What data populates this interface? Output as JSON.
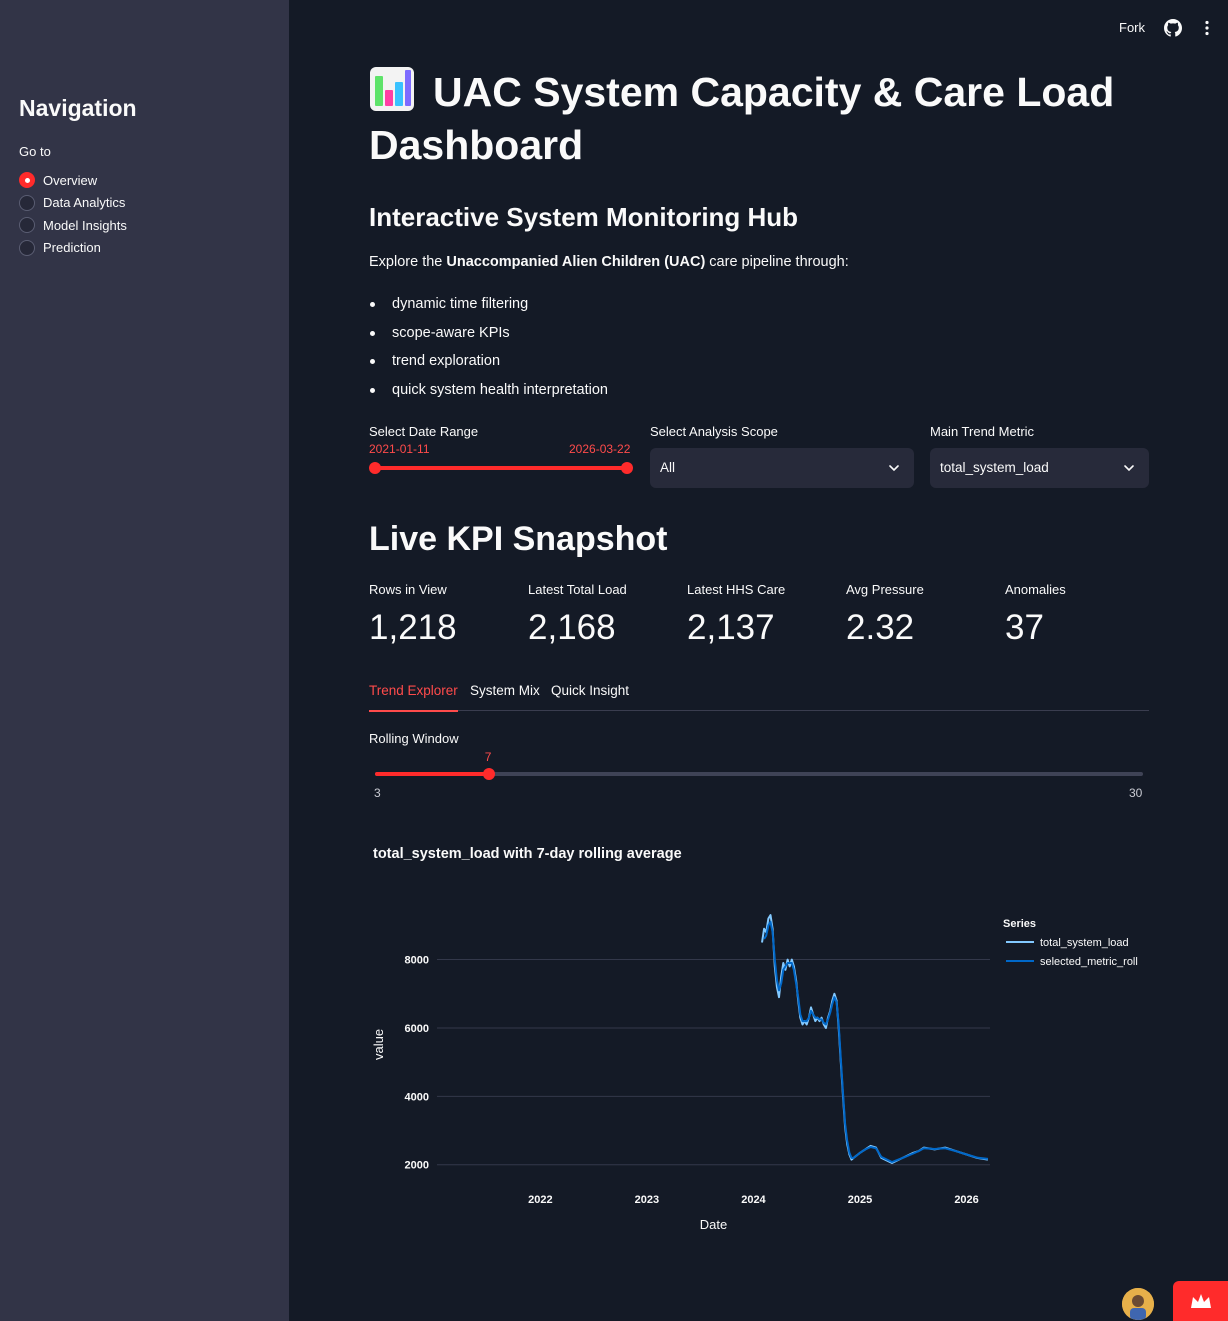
{
  "topbar": {
    "fork_label": "Fork",
    "github_icon": "github-icon",
    "menu_icon": "kebab-menu-icon"
  },
  "sidebar": {
    "title": "Navigation",
    "radio_label": "Go to",
    "items": [
      {
        "label": "Overview",
        "selected": true
      },
      {
        "label": "Data Analytics",
        "selected": false
      },
      {
        "label": "Model Insights",
        "selected": false
      },
      {
        "label": "Prediction",
        "selected": false
      }
    ]
  },
  "header": {
    "title": "UAC System Capacity & Care Load Dashboard",
    "title_icon": "bar-chart-emoji-icon",
    "subtitle": "Interactive System Monitoring Hub",
    "explore_prefix": "Explore the ",
    "explore_bold": "Unaccompanied Alien Children (UAC)",
    "explore_suffix": " care pipeline through:",
    "bullets": [
      "dynamic time filtering",
      "scope-aware KPIs",
      "trend exploration",
      "quick system health interpretation"
    ]
  },
  "filters": {
    "date_range_label": "Select Date Range",
    "date_start": "2021-01-11",
    "date_end": "2026-03-22",
    "date_start_fraction": 0.0,
    "date_end_fraction": 1.0,
    "scope_label": "Select Analysis Scope",
    "scope_value": "All",
    "metric_label": "Main Trend Metric",
    "metric_value": "total_system_load"
  },
  "kpis": {
    "heading": "Live KPI Snapshot",
    "items": [
      {
        "label": "Rows in View",
        "value": "1,218"
      },
      {
        "label": "Latest Total Load",
        "value": "2,168"
      },
      {
        "label": "Latest HHS Care",
        "value": "2,137"
      },
      {
        "label": "Avg Pressure",
        "value": "2.32"
      },
      {
        "label": "Anomalies",
        "value": "37"
      }
    ]
  },
  "tabs": [
    {
      "label": "Trend Explorer",
      "active": true
    },
    {
      "label": "System Mix",
      "active": false
    },
    {
      "label": "Quick Insight",
      "active": false
    }
  ],
  "rolling": {
    "label": "Rolling Window",
    "value": "7",
    "min": "3",
    "max": "30",
    "value_num": 7,
    "min_num": 3,
    "max_num": 30
  },
  "colors": {
    "accent": "#ff4b4b",
    "series_total": "#83c9ff",
    "series_roll": "#0068c9"
  },
  "chart_data": {
    "type": "line",
    "title": "total_system_load with 7-day rolling average",
    "xlabel": "Date",
    "ylabel": "value",
    "x_tick_labels": [
      "2022",
      "2023",
      "2024",
      "2025",
      "2026"
    ],
    "x_ticks": [
      2022.0,
      2023.0,
      2024.0,
      2025.0,
      2026.0
    ],
    "y_tick_labels": [
      "2000",
      "4000",
      "6000",
      "8000"
    ],
    "y_ticks": [
      2000,
      4000,
      6000,
      8000
    ],
    "xlim": [
      2021.03,
      2026.22
    ],
    "ylim": [
      1700,
      9800
    ],
    "grid": true,
    "legend_title": "Series",
    "legend_position": "top-right",
    "series": [
      {
        "name": "total_system_load",
        "x": [
          2024.08,
          2024.1,
          2024.12,
          2024.14,
          2024.16,
          2024.18,
          2024.2,
          2024.22,
          2024.24,
          2024.26,
          2024.28,
          2024.3,
          2024.32,
          2024.34,
          2024.36,
          2024.38,
          2024.4,
          2024.42,
          2024.44,
          2024.46,
          2024.48,
          2024.5,
          2024.52,
          2024.54,
          2024.56,
          2024.58,
          2024.6,
          2024.62,
          2024.64,
          2024.66,
          2024.68,
          2024.7,
          2024.72,
          2024.74,
          2024.76,
          2024.78,
          2024.8,
          2024.82,
          2024.84,
          2024.86,
          2024.88,
          2024.9,
          2024.92,
          2024.94,
          2024.96,
          2024.98,
          2025.0,
          2025.05,
          2025.1,
          2025.15,
          2025.2,
          2025.3,
          2025.4,
          2025.5,
          2025.55,
          2025.6,
          2025.7,
          2025.8,
          2025.9,
          2026.0,
          2026.1,
          2026.2
        ],
        "y": [
          8500,
          8900,
          8800,
          9200,
          9300,
          8900,
          7800,
          7200,
          6900,
          7500,
          7900,
          7700,
          8000,
          7800,
          8000,
          7800,
          7400,
          6800,
          6300,
          6100,
          6200,
          6100,
          6300,
          6600,
          6400,
          6200,
          6300,
          6200,
          6300,
          6100,
          6000,
          6300,
          6500,
          6800,
          7000,
          6800,
          6000,
          5000,
          4000,
          3100,
          2600,
          2300,
          2150,
          2200,
          2250,
          2300,
          2350,
          2450,
          2550,
          2500,
          2200,
          2050,
          2200,
          2350,
          2400,
          2500,
          2450,
          2500,
          2400,
          2300,
          2200,
          2150
        ]
      },
      {
        "name": "selected_metric_roll",
        "x": [
          2024.1,
          2024.12,
          2024.14,
          2024.16,
          2024.18,
          2024.2,
          2024.22,
          2024.24,
          2024.26,
          2024.28,
          2024.3,
          2024.32,
          2024.34,
          2024.36,
          2024.38,
          2024.4,
          2024.42,
          2024.44,
          2024.46,
          2024.48,
          2024.5,
          2024.52,
          2024.54,
          2024.56,
          2024.58,
          2024.6,
          2024.62,
          2024.64,
          2024.66,
          2024.68,
          2024.7,
          2024.72,
          2024.74,
          2024.76,
          2024.78,
          2024.8,
          2024.82,
          2024.84,
          2024.86,
          2024.88,
          2024.9,
          2024.92,
          2024.94,
          2024.96,
          2024.98,
          2025.0,
          2025.05,
          2025.1,
          2025.15,
          2025.2,
          2025.3,
          2025.4,
          2025.5,
          2025.55,
          2025.6,
          2025.7,
          2025.8,
          2025.9,
          2026.0,
          2026.1,
          2026.2
        ],
        "y": [
          8600,
          8700,
          9000,
          9100,
          8800,
          8000,
          7400,
          7100,
          7300,
          7700,
          7800,
          7900,
          7900,
          7900,
          7700,
          7300,
          6900,
          6400,
          6200,
          6200,
          6200,
          6300,
          6500,
          6400,
          6300,
          6300,
          6250,
          6250,
          6150,
          6100,
          6250,
          6450,
          6700,
          6900,
          6750,
          6100,
          5100,
          4100,
          3200,
          2700,
          2350,
          2200,
          2200,
          2250,
          2300,
          2350,
          2450,
          2520,
          2480,
          2230,
          2080,
          2200,
          2330,
          2400,
          2480,
          2460,
          2480,
          2400,
          2300,
          2210,
          2170
        ]
      }
    ]
  }
}
